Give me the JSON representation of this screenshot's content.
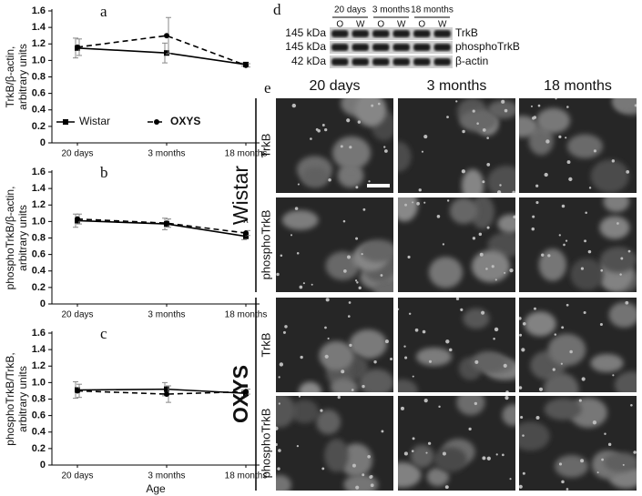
{
  "chart_data": [
    {
      "type": "line",
      "panel_label": "a",
      "ylabel": [
        "TrkB/β-actin,",
        "arbitrary units"
      ],
      "categories": [
        "20 days",
        "3 months",
        "18 months"
      ],
      "ylim": [
        0,
        1.6
      ],
      "yticks": [
        0,
        0.2,
        0.4,
        0.6,
        0.8,
        {
          "value": 1,
          "label": "1.0"
        },
        1.2,
        1.4,
        1.6
      ],
      "legend": "lower left",
      "series": [
        {
          "name": "Wistar",
          "color": "#000000",
          "dashed": false,
          "marker": "square",
          "values": [
            1.15,
            1.09,
            0.95
          ],
          "errors": [
            0.12,
            0.12,
            0.02
          ]
        },
        {
          "name": "OXYS",
          "color": "#000000",
          "dashed": true,
          "marker": "circle",
          "values": [
            1.16,
            1.3,
            0.94
          ],
          "errors": [
            0.1,
            0.22,
            0.02
          ]
        }
      ]
    },
    {
      "type": "line",
      "panel_label": "b",
      "ylabel": [
        "phosphoTrkB/β-actin,",
        "arbitrary units"
      ],
      "categories": [
        "20 days",
        "3 months",
        "18 months"
      ],
      "ylim": [
        0,
        1.6
      ],
      "yticks": [
        0,
        0.2,
        0.4,
        0.6,
        0.8,
        {
          "value": 1,
          "label": "1.0"
        },
        1.2,
        1.4,
        1.6
      ],
      "annotation": "^",
      "series": [
        {
          "name": "Wistar",
          "color": "#000000",
          "dashed": false,
          "marker": "square",
          "values": [
            1.01,
            0.97,
            0.82
          ],
          "errors": [
            0.08,
            0.07,
            0.04
          ]
        },
        {
          "name": "OXYS",
          "color": "#000000",
          "dashed": true,
          "marker": "circle",
          "values": [
            1.03,
            0.98,
            0.86
          ],
          "errors": [
            0.06,
            0.05,
            0.03
          ]
        }
      ]
    },
    {
      "type": "line",
      "panel_label": "c",
      "ylabel": [
        "phosphoTrkB/TrkB,",
        "arbitrary units"
      ],
      "categories": [
        "20 days",
        "3 months",
        "18 months"
      ],
      "xlabel": "Age",
      "ylim": [
        0,
        1.6
      ],
      "yticks": [
        0,
        0.2,
        0.4,
        0.6,
        0.8,
        {
          "value": 1,
          "label": "1.0"
        },
        1.2,
        1.4,
        1.6
      ],
      "series": [
        {
          "name": "Wistar",
          "color": "#000000",
          "dashed": false,
          "marker": "square",
          "values": [
            0.91,
            0.92,
            0.87
          ],
          "errors": [
            0.1,
            0.08,
            0.04
          ]
        },
        {
          "name": "OXYS",
          "color": "#000000",
          "dashed": true,
          "marker": "circle",
          "values": [
            0.9,
            0.86,
            0.89
          ],
          "errors": [
            0.08,
            0.1,
            0.03
          ]
        }
      ]
    }
  ],
  "blot": {
    "panel_label": "d",
    "groups": [
      "20 days",
      "3 months",
      "18 months"
    ],
    "lanes": [
      "O",
      "W",
      "O",
      "W",
      "O",
      "W"
    ],
    "rows": [
      {
        "weight": "145 kDa",
        "protein": "TrkB"
      },
      {
        "weight": "145 kDa",
        "protein": "phosphoTrkB"
      },
      {
        "weight": "42 kDa",
        "protein": "β-actin"
      }
    ]
  },
  "micrographs": {
    "panel_label": "e",
    "columns": [
      "20 days",
      "3 months",
      "18 months"
    ],
    "groups": [
      {
        "name": "Wistar",
        "rows": [
          "TrkB",
          "phosphoTrkB"
        ]
      },
      {
        "name": "OXYS",
        "rows": [
          "TrkB",
          "phosphoTrkB"
        ]
      }
    ]
  }
}
